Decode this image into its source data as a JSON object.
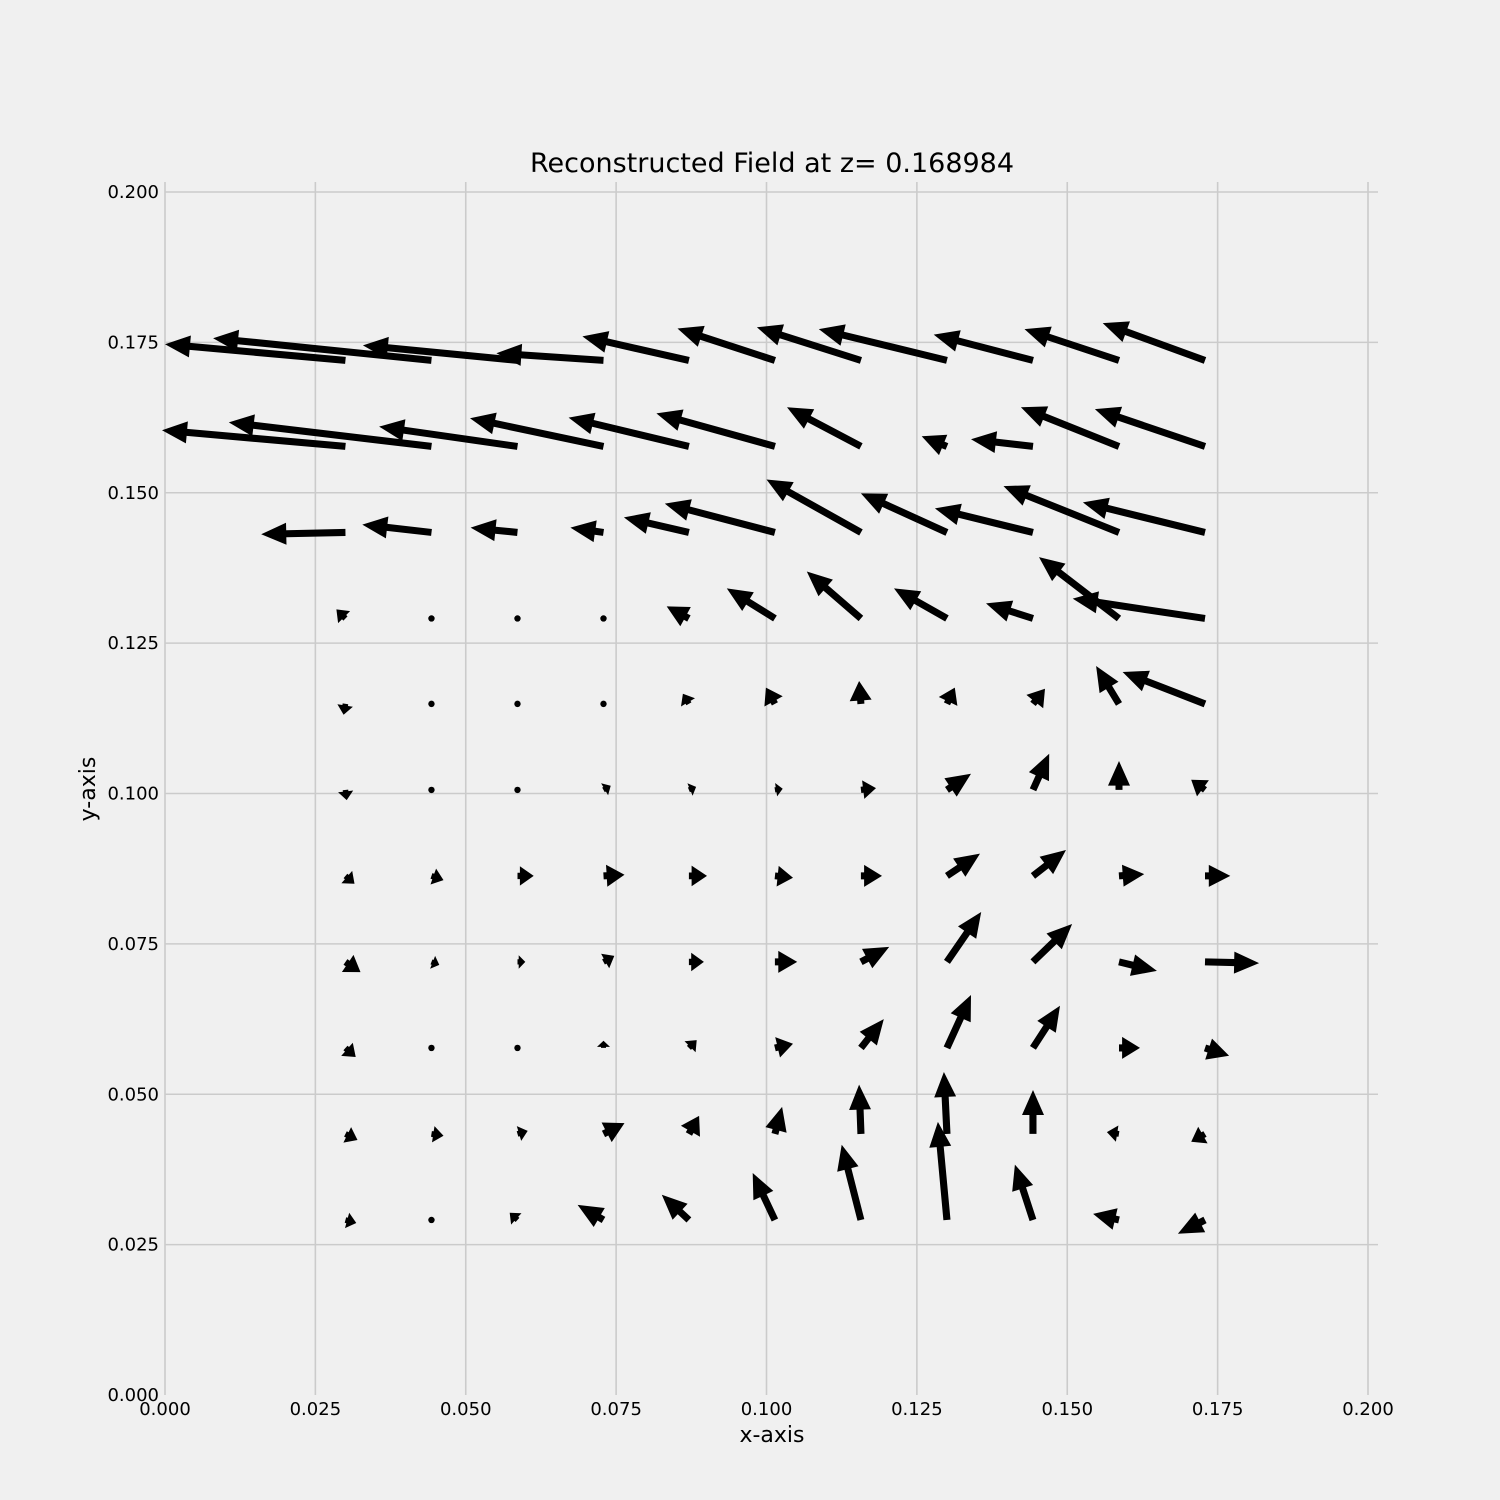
{
  "chart_data": {
    "type": "quiver",
    "title": "Reconstructed Field at z= 0.168984",
    "xlabel": "x-axis",
    "ylabel": "y-axis",
    "xlim": [
      0,
      0.2
    ],
    "ylim": [
      0,
      0.2
    ],
    "xticks": [
      "0.000",
      "0.025",
      "0.050",
      "0.075",
      "0.100",
      "0.125",
      "0.150",
      "0.175",
      "0.200"
    ],
    "yticks": [
      "0.000",
      "0.025",
      "0.050",
      "0.075",
      "0.100",
      "0.125",
      "0.150",
      "0.175",
      "0.200"
    ],
    "grid": true,
    "arrow_color": "#000000",
    "background": "#f0f0f0",
    "arrows": [
      {
        "x": 0.03,
        "y": 0.172,
        "u": -0.03,
        "v": 0.0027
      },
      {
        "x": 0.0443,
        "y": 0.172,
        "u": -0.0363,
        "v": 0.0037
      },
      {
        "x": 0.0586,
        "y": 0.172,
        "u": -0.0257,
        "v": 0.0025
      },
      {
        "x": 0.0729,
        "y": 0.172,
        "u": -0.0178,
        "v": 0.0012
      },
      {
        "x": 0.0871,
        "y": 0.172,
        "u": -0.0177,
        "v": 0.004
      },
      {
        "x": 0.1014,
        "y": 0.172,
        "u": -0.0162,
        "v": 0.0053
      },
      {
        "x": 0.1157,
        "y": 0.172,
        "u": -0.0173,
        "v": 0.0055
      },
      {
        "x": 0.13,
        "y": 0.172,
        "u": -0.0213,
        "v": 0.0052
      },
      {
        "x": 0.1443,
        "y": 0.172,
        "u": -0.0165,
        "v": 0.0043
      },
      {
        "x": 0.1586,
        "y": 0.172,
        "u": -0.0157,
        "v": 0.0052
      },
      {
        "x": 0.1729,
        "y": 0.172,
        "u": -0.017,
        "v": 0.0062
      },
      {
        "x": 0.03,
        "y": 0.1577,
        "u": -0.0305,
        "v": 0.0027
      },
      {
        "x": 0.0443,
        "y": 0.1577,
        "u": -0.0337,
        "v": 0.004
      },
      {
        "x": 0.0586,
        "y": 0.1577,
        "u": -0.023,
        "v": 0.0033
      },
      {
        "x": 0.0729,
        "y": 0.1577,
        "u": -0.0222,
        "v": 0.0047
      },
      {
        "x": 0.0871,
        "y": 0.1577,
        "u": -0.02,
        "v": 0.0048
      },
      {
        "x": 0.1014,
        "y": 0.1577,
        "u": -0.0197,
        "v": 0.0055
      },
      {
        "x": 0.1157,
        "y": 0.1577,
        "u": -0.0123,
        "v": 0.0065
      },
      {
        "x": 0.13,
        "y": 0.1577,
        "u": -0.0042,
        "v": 0.0017
      },
      {
        "x": 0.1443,
        "y": 0.1577,
        "u": -0.0103,
        "v": 0.0012
      },
      {
        "x": 0.1586,
        "y": 0.1577,
        "u": -0.0163,
        "v": 0.0065
      },
      {
        "x": 0.1729,
        "y": 0.1577,
        "u": -0.0183,
        "v": 0.0062
      },
      {
        "x": 0.03,
        "y": 0.1434,
        "u": -0.014,
        "v": -0.0003
      },
      {
        "x": 0.0443,
        "y": 0.1434,
        "u": -0.0115,
        "v": 0.0013
      },
      {
        "x": 0.0586,
        "y": 0.1434,
        "u": -0.0078,
        "v": 0.0008
      },
      {
        "x": 0.0729,
        "y": 0.1434,
        "u": -0.0055,
        "v": 0.0008
      },
      {
        "x": 0.0871,
        "y": 0.1434,
        "u": -0.0108,
        "v": 0.0025
      },
      {
        "x": 0.1014,
        "y": 0.1434,
        "u": -0.0183,
        "v": 0.0048
      },
      {
        "x": 0.1157,
        "y": 0.1434,
        "u": -0.0157,
        "v": 0.0088
      },
      {
        "x": 0.13,
        "y": 0.1434,
        "u": -0.0143,
        "v": 0.0065
      },
      {
        "x": 0.1443,
        "y": 0.1434,
        "u": -0.0163,
        "v": 0.004
      },
      {
        "x": 0.1586,
        "y": 0.1434,
        "u": -0.0192,
        "v": 0.0077
      },
      {
        "x": 0.1729,
        "y": 0.1434,
        "u": -0.0203,
        "v": 0.005
      },
      {
        "x": 0.03,
        "y": 0.1291,
        "u": -0.0015,
        "v": 0.0015
      },
      {
        "x": 0.0443,
        "y": 0.1291,
        "u": 0,
        "v": 0
      },
      {
        "x": 0.0586,
        "y": 0.1291,
        "u": 0,
        "v": 0
      },
      {
        "x": 0.0729,
        "y": 0.1291,
        "u": 0,
        "v": 0
      },
      {
        "x": 0.0871,
        "y": 0.1291,
        "u": -0.0037,
        "v": 0.002
      },
      {
        "x": 0.1014,
        "y": 0.1291,
        "u": -0.008,
        "v": 0.005
      },
      {
        "x": 0.1157,
        "y": 0.1291,
        "u": -0.009,
        "v": 0.0078
      },
      {
        "x": 0.13,
        "y": 0.1291,
        "u": -0.0088,
        "v": 0.005
      },
      {
        "x": 0.1443,
        "y": 0.1291,
        "u": -0.0078,
        "v": 0.0025
      },
      {
        "x": 0.1586,
        "y": 0.1291,
        "u": -0.0133,
        "v": 0.0102
      },
      {
        "x": 0.1729,
        "y": 0.1291,
        "u": -0.022,
        "v": 0.0033
      },
      {
        "x": 0.03,
        "y": 0.1149,
        "u": -0.0003,
        "v": -0.0018
      },
      {
        "x": 0.0443,
        "y": 0.1149,
        "u": 0,
        "v": 0
      },
      {
        "x": 0.0586,
        "y": 0.1149,
        "u": 0,
        "v": 0
      },
      {
        "x": 0.0729,
        "y": 0.1149,
        "u": 0,
        "v": 0
      },
      {
        "x": 0.0871,
        "y": 0.1149,
        "u": -0.001,
        "v": 0.0017
      },
      {
        "x": 0.1014,
        "y": 0.1149,
        "u": -0.0015,
        "v": 0.0027
      },
      {
        "x": 0.1157,
        "y": 0.1149,
        "u": -0.0003,
        "v": 0.0038
      },
      {
        "x": 0.13,
        "y": 0.1149,
        "u": 0.0013,
        "v": 0.0027
      },
      {
        "x": 0.1443,
        "y": 0.1149,
        "u": 0.002,
        "v": 0.0025
      },
      {
        "x": 0.1586,
        "y": 0.1149,
        "u": -0.0038,
        "v": 0.0063
      },
      {
        "x": 0.1729,
        "y": 0.1149,
        "u": -0.0137,
        "v": 0.0053
      },
      {
        "x": 0.03,
        "y": 0.1006,
        "u": 0.0002,
        "v": -0.0017
      },
      {
        "x": 0.0443,
        "y": 0.1006,
        "u": 0,
        "v": 0
      },
      {
        "x": 0.0586,
        "y": 0.1006,
        "u": 0,
        "v": 0
      },
      {
        "x": 0.0729,
        "y": 0.1006,
        "u": 0.0012,
        "v": 0.0007
      },
      {
        "x": 0.0871,
        "y": 0.1006,
        "u": 0.0012,
        "v": 0.0005
      },
      {
        "x": 0.1014,
        "y": 0.1006,
        "u": 0.0013,
        "v": 0.0002
      },
      {
        "x": 0.1157,
        "y": 0.1006,
        "u": 0.0025,
        "v": 0.0003
      },
      {
        "x": 0.13,
        "y": 0.1006,
        "u": 0.004,
        "v": 0.0027
      },
      {
        "x": 0.1443,
        "y": 0.1006,
        "u": 0.0027,
        "v": 0.006
      },
      {
        "x": 0.1586,
        "y": 0.1006,
        "u": 0,
        "v": 0.0048
      },
      {
        "x": 0.1729,
        "y": 0.1006,
        "u": -0.0023,
        "v": 0.0017
      },
      {
        "x": 0.03,
        "y": 0.0863,
        "u": 0.0015,
        "v": -0.0013
      },
      {
        "x": 0.0443,
        "y": 0.0863,
        "u": 0.002,
        "v": -0.0007
      },
      {
        "x": 0.0586,
        "y": 0.0863,
        "u": 0.0027,
        "v": 0
      },
      {
        "x": 0.0729,
        "y": 0.0863,
        "u": 0.0035,
        "v": 0.0002
      },
      {
        "x": 0.0871,
        "y": 0.0863,
        "u": 0.003,
        "v": 0
      },
      {
        "x": 0.1014,
        "y": 0.0863,
        "u": 0.003,
        "v": -0.0003
      },
      {
        "x": 0.1157,
        "y": 0.0863,
        "u": 0.0035,
        "v": 0
      },
      {
        "x": 0.13,
        "y": 0.0863,
        "u": 0.0055,
        "v": 0.0037
      },
      {
        "x": 0.1443,
        "y": 0.0863,
        "u": 0.0055,
        "v": 0.0043
      },
      {
        "x": 0.1586,
        "y": 0.0863,
        "u": 0.0042,
        "v": 0.0003
      },
      {
        "x": 0.1729,
        "y": 0.0863,
        "u": 0.0042,
        "v": 0
      },
      {
        "x": 0.03,
        "y": 0.072,
        "u": 0.0025,
        "v": -0.0017
      },
      {
        "x": 0.0443,
        "y": 0.072,
        "u": 0.0013,
        "v": -0.0005
      },
      {
        "x": 0.0586,
        "y": 0.072,
        "u": 0.0013,
        "v": 0
      },
      {
        "x": 0.0729,
        "y": 0.072,
        "u": 0.0018,
        "v": 0.001
      },
      {
        "x": 0.0871,
        "y": 0.072,
        "u": 0.0025,
        "v": 0
      },
      {
        "x": 0.1014,
        "y": 0.072,
        "u": 0.0037,
        "v": 0
      },
      {
        "x": 0.1157,
        "y": 0.072,
        "u": 0.0047,
        "v": 0.0025
      },
      {
        "x": 0.13,
        "y": 0.072,
        "u": 0.0057,
        "v": 0.0083
      },
      {
        "x": 0.1443,
        "y": 0.072,
        "u": 0.0065,
        "v": 0.0063
      },
      {
        "x": 0.1586,
        "y": 0.072,
        "u": 0.0063,
        "v": -0.0015
      },
      {
        "x": 0.1729,
        "y": 0.072,
        "u": 0.009,
        "v": -0.0002
      },
      {
        "x": 0.03,
        "y": 0.0577,
        "u": 0.0017,
        "v": -0.0015
      },
      {
        "x": 0.0443,
        "y": 0.0577,
        "u": 0,
        "v": 0
      },
      {
        "x": 0.0586,
        "y": 0.0577,
        "u": 0,
        "v": 0
      },
      {
        "x": 0.0729,
        "y": 0.0577,
        "u": 0,
        "v": 0.0012
      },
      {
        "x": 0.0871,
        "y": 0.0577,
        "u": 0.0013,
        "v": 0.0013
      },
      {
        "x": 0.1014,
        "y": 0.0577,
        "u": 0.003,
        "v": 0.0007
      },
      {
        "x": 0.1157,
        "y": 0.0577,
        "u": 0.0038,
        "v": 0.0048
      },
      {
        "x": 0.13,
        "y": 0.0577,
        "u": 0.004,
        "v": 0.0088
      },
      {
        "x": 0.1443,
        "y": 0.0577,
        "u": 0.0045,
        "v": 0.007
      },
      {
        "x": 0.1586,
        "y": 0.0577,
        "u": 0.0035,
        "v": 0
      },
      {
        "x": 0.1729,
        "y": 0.0577,
        "u": 0.004,
        "v": -0.0013
      },
      {
        "x": 0.03,
        "y": 0.0434,
        "u": 0.002,
        "v": -0.001
      },
      {
        "x": 0.0443,
        "y": 0.0434,
        "u": 0.002,
        "v": -0.0003
      },
      {
        "x": 0.0586,
        "y": 0.0434,
        "u": 0.0017,
        "v": 0.0005
      },
      {
        "x": 0.0729,
        "y": 0.0434,
        "u": 0.0035,
        "v": 0.0018
      },
      {
        "x": 0.0871,
        "y": 0.0434,
        "u": 0.0017,
        "v": 0.003
      },
      {
        "x": 0.1014,
        "y": 0.0434,
        "u": 0.0012,
        "v": 0.0045
      },
      {
        "x": 0.1157,
        "y": 0.0434,
        "u": -0.0003,
        "v": 0.0082
      },
      {
        "x": 0.13,
        "y": 0.0434,
        "u": -0.0005,
        "v": 0.0103
      },
      {
        "x": 0.1443,
        "y": 0.0434,
        "u": 0,
        "v": 0.0073
      },
      {
        "x": 0.1586,
        "y": 0.0434,
        "u": -0.002,
        "v": 0.0003
      },
      {
        "x": 0.1729,
        "y": 0.0434,
        "u": -0.0023,
        "v": -0.0013
      },
      {
        "x": 0.03,
        "y": 0.0291,
        "u": 0.0018,
        "v": -0.0005
      },
      {
        "x": 0.0443,
        "y": 0.0291,
        "u": 0,
        "v": 0
      },
      {
        "x": 0.0586,
        "y": 0.0291,
        "u": -0.0013,
        "v": 0.0012
      },
      {
        "x": 0.0729,
        "y": 0.0291,
        "u": -0.0043,
        "v": 0.0025
      },
      {
        "x": 0.0871,
        "y": 0.0291,
        "u": -0.0045,
        "v": 0.0042
      },
      {
        "x": 0.1014,
        "y": 0.0291,
        "u": -0.0037,
        "v": 0.0078
      },
      {
        "x": 0.1157,
        "y": 0.0291,
        "u": -0.0032,
        "v": 0.0125
      },
      {
        "x": 0.13,
        "y": 0.0291,
        "u": -0.0015,
        "v": 0.0163
      },
      {
        "x": 0.1443,
        "y": 0.0291,
        "u": -0.003,
        "v": 0.0092
      },
      {
        "x": 0.1586,
        "y": 0.0291,
        "u": -0.0043,
        "v": 0.001
      },
      {
        "x": 0.1729,
        "y": 0.0291,
        "u": -0.0045,
        "v": -0.0023
      }
    ]
  }
}
